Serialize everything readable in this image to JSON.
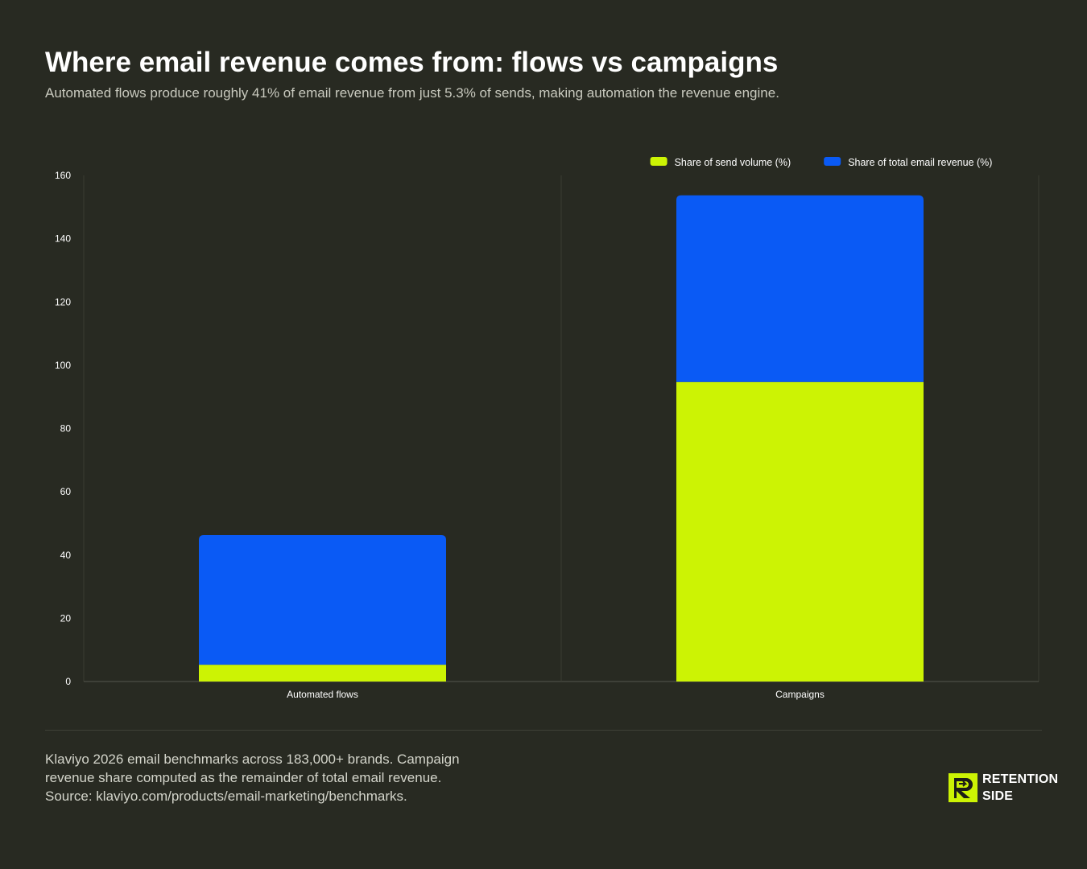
{
  "header": {
    "title": "Where email revenue comes from: flows vs campaigns",
    "subtitle": "Automated flows produce roughly 41% of email revenue from just 5.3% of sends, making automation the revenue engine."
  },
  "colors": {
    "background": "#282a22",
    "send_volume": "#ccf304",
    "revenue": "#0a5af5",
    "grid": "#3a3c33",
    "axis_text": "#ffffff"
  },
  "chart_data": {
    "type": "bar",
    "stacked": true,
    "categories": [
      "Automated flows",
      "Campaigns"
    ],
    "series": [
      {
        "name": "Share of send volume (%)",
        "values": [
          5.3,
          94.7
        ]
      },
      {
        "name": "Share of total email revenue (%)",
        "values": [
          41,
          59
        ]
      }
    ],
    "ylim": [
      0,
      160
    ],
    "yticks": [
      0,
      20,
      40,
      60,
      80,
      100,
      120,
      140,
      160
    ],
    "legend_position": "top-right",
    "xlabel": "",
    "ylabel": ""
  },
  "footer": {
    "note": "Klaviyo 2026 email benchmarks across 183,000+ brands. Campaign revenue share computed as the remainder of total email revenue. Source: klaviyo.com/products/email-marketing/benchmarks.",
    "logo_line1": "RETENTION",
    "logo_line2": "SIDE"
  }
}
